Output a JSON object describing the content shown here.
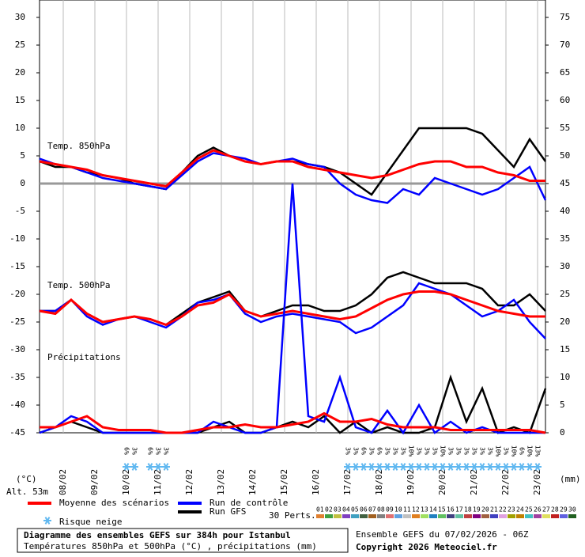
{
  "chart_data": {
    "type": "line",
    "title": "Diagramme des ensembles GEFS sur 384h pour Istanbul",
    "subtitle": "Températures 850hPa et 500hPa (°C) , précipitations (mm)",
    "run_info": "Ensemble GEFS du 07/02/2026 - 06Z",
    "copyright": "Copyright 2026 Meteociel.fr",
    "altitude": "Alt. 53m",
    "y_label": "(°C)",
    "y2_label": "(mm)",
    "annotations": [
      "Temp. 850hPa",
      "Temp. 500hPa",
      "Précipitations"
    ],
    "x": [
      0,
      12,
      24,
      36,
      48,
      60,
      72,
      84,
      96,
      108,
      120,
      132,
      144,
      156,
      168,
      180,
      192,
      204,
      216,
      228,
      240,
      252,
      264,
      276,
      288,
      300,
      312,
      324,
      336,
      348,
      360,
      372,
      384
    ],
    "xlim": [
      0,
      384
    ],
    "xticks": [
      {
        "value": 18,
        "label": "08/02"
      },
      {
        "value": 42,
        "label": "09/02"
      },
      {
        "value": 66,
        "label": "10/02"
      },
      {
        "value": 90,
        "label": "11/02"
      },
      {
        "value": 114,
        "label": "12/02"
      },
      {
        "value": 138,
        "label": "13/02"
      },
      {
        "value": 162,
        "label": "14/02"
      },
      {
        "value": 186,
        "label": "15/02"
      },
      {
        "value": 210,
        "label": "16/02"
      },
      {
        "value": 234,
        "label": "17/02"
      },
      {
        "value": 258,
        "label": "18/02"
      },
      {
        "value": 282,
        "label": "19/02"
      },
      {
        "value": 306,
        "label": "20/02"
      },
      {
        "value": 330,
        "label": "21/02"
      },
      {
        "value": 354,
        "label": "22/02"
      },
      {
        "value": 378,
        "label": "23/02"
      }
    ],
    "ylim": [
      -45,
      30
    ],
    "yticks": [
      -45,
      -40,
      -35,
      -30,
      -25,
      -20,
      -15,
      -10,
      -5,
      0,
      5,
      10,
      15,
      20,
      25,
      30
    ],
    "y2lim": [
      0,
      75
    ],
    "y2ticks": [
      0,
      5,
      10,
      15,
      20,
      25,
      30,
      35,
      40,
      45,
      50,
      55,
      60,
      65,
      70,
      75
    ],
    "zero_line": true,
    "grid": true,
    "series": [
      {
        "name": "Run GFS",
        "color": "#000000",
        "values": [
          4,
          3,
          3,
          2,
          1.5,
          1,
          0,
          -0.5,
          -1,
          2,
          5,
          6.5,
          5,
          4,
          3.5,
          4,
          4,
          3.5,
          3,
          2,
          0,
          -2,
          2,
          6,
          10,
          10,
          10,
          10,
          9,
          6,
          3,
          8,
          4
        ]
      },
      {
        "name": "Run de contrôle",
        "color": "#0000ff",
        "values": [
          4.5,
          3.5,
          3,
          2,
          1,
          0.5,
          0,
          -0.5,
          -1,
          1.5,
          4,
          5.5,
          5,
          4.5,
          3.5,
          4,
          4.5,
          3.5,
          3,
          0,
          -2,
          -3,
          -3.5,
          -1,
          -2,
          1,
          0,
          -1,
          -2,
          -1,
          1,
          3,
          -3
        ]
      },
      {
        "name": "Moyenne des scénarios",
        "color": "#ff0000",
        "values": [
          4,
          3.5,
          3,
          2.5,
          1.5,
          1,
          0.5,
          0,
          -0.5,
          2,
          4.5,
          6,
          5,
          4,
          3.5,
          4,
          4,
          3,
          2.5,
          2,
          1.5,
          1,
          1.5,
          2.5,
          3.5,
          4,
          4,
          3,
          3,
          2,
          1.5,
          0.5,
          0.5
        ]
      },
      {
        "color": "#000000",
        "values": [
          -23,
          -23,
          -21,
          -23.5,
          -25,
          -24.5,
          -24,
          -24.5,
          -25.5,
          -23.5,
          -21.5,
          -20.5,
          -19.5,
          -23,
          -24,
          -23,
          -22,
          -22,
          -23,
          -23,
          -22,
          -20,
          -17,
          -16,
          -17,
          -18,
          -18,
          -18,
          -19,
          -22,
          -22,
          -20,
          -23
        ]
      },
      {
        "color": "#0000ff",
        "values": [
          -23,
          -23,
          -21,
          -24,
          -25.5,
          -24.5,
          -24,
          -25,
          -26,
          -24,
          -21.5,
          -21,
          -20,
          -23.5,
          -25,
          -24,
          -23.5,
          -24,
          -24.5,
          -25,
          -27,
          -26,
          -24,
          -22,
          -18,
          -19,
          -20,
          -22,
          -24,
          -23,
          -21,
          -25,
          -28
        ]
      },
      {
        "color": "#ff0000",
        "values": [
          -23,
          -23.5,
          -21,
          -23.5,
          -25,
          -24.5,
          -24,
          -24.5,
          -25.5,
          -24,
          -22,
          -21.5,
          -20,
          -23,
          -24,
          -23.5,
          -23,
          -23.5,
          -24,
          -24.5,
          -24,
          -22.5,
          -21,
          -20,
          -19.5,
          -19.5,
          -20,
          -21,
          -22,
          -23,
          -23.5,
          -24,
          -24
        ]
      },
      {
        "color": "#000000",
        "axis": "y2",
        "values": [
          0,
          1,
          2,
          1,
          0,
          0,
          0,
          0,
          0,
          0,
          0,
          1,
          2,
          0,
          0,
          1,
          2,
          1,
          3,
          0,
          2,
          0,
          1,
          0,
          0,
          1,
          10,
          2,
          8,
          0,
          1,
          0,
          8
        ]
      },
      {
        "color": "#0000ff",
        "axis": "y2",
        "values": [
          0,
          1,
          3,
          2,
          0,
          0,
          0,
          0,
          0,
          0,
          0,
          2,
          1,
          0,
          0,
          1,
          45,
          3,
          2,
          10,
          1,
          0,
          4,
          0,
          5,
          0,
          2,
          0,
          1,
          0,
          0,
          0,
          0
        ]
      },
      {
        "color": "#ff0000",
        "axis": "y2",
        "values": [
          1,
          1,
          2,
          3,
          1,
          0.5,
          0.5,
          0.5,
          0,
          0,
          0.5,
          1,
          1,
          1.5,
          1,
          1,
          1.5,
          2,
          3.5,
          2,
          2,
          2.5,
          1.5,
          1,
          1,
          1,
          0.5,
          0.5,
          0.5,
          0.5,
          0.5,
          0.5,
          0
        ]
      }
    ],
    "snow_label": "Risque neige",
    "snow_color": "#60b8f0",
    "snow_risk": {
      "x": [
        66,
        72,
        84,
        90,
        96,
        234,
        240,
        246,
        252,
        258,
        264,
        270,
        276,
        282,
        288,
        294,
        300,
        306,
        312,
        318,
        324,
        330,
        336,
        342,
        348,
        354,
        360,
        366,
        372,
        378
      ],
      "values": [
        6,
        3,
        6,
        3,
        3,
        3,
        3,
        6,
        3,
        6,
        3,
        3,
        3,
        10,
        3,
        3,
        3,
        10,
        3,
        3,
        3,
        3,
        3,
        3,
        10,
        3,
        10,
        6,
        10,
        13
      ],
      "value_labels": [
        "6%",
        "3%",
        "6%",
        "3%",
        "3%",
        "3%",
        "3%",
        "6%",
        "3%",
        "6%",
        "3%",
        "3%",
        "3%",
        "10%",
        "3%",
        "3%",
        "3%",
        "10%",
        "3%",
        "3%",
        "3%",
        "3%",
        "3%",
        "3%",
        "10%",
        "3%",
        "10%",
        "6%",
        "10%",
        "13%"
      ]
    },
    "perturbations": {
      "label": "30 Perts.",
      "names": [
        "01",
        "02",
        "03",
        "04",
        "05",
        "06",
        "07",
        "08",
        "09",
        "10",
        "11",
        "12",
        "13",
        "14",
        "15",
        "16",
        "17",
        "18",
        "19",
        "20",
        "21",
        "22",
        "23",
        "24",
        "25",
        "26",
        "27",
        "28",
        "29",
        "30"
      ],
      "colors": [
        "#e08030",
        "#40a040",
        "#c0c040",
        "#8040c0",
        "#40a0c0",
        "#406040",
        "#a06020",
        "#808080",
        "#e07070",
        "#60a0e0",
        "#c0c0c0",
        "#e08020",
        "#a0e060",
        "#2080c0",
        "#60c060",
        "#404080",
        "#60c0a0",
        "#c04040",
        "#800080",
        "#a06040",
        "#4040c0",
        "#e0a0e0",
        "#a0a000",
        "#c08000",
        "#40c0c0",
        "#a040a0",
        "#e0e060",
        "#c02020",
        "#6060e0",
        "#206020"
      ]
    }
  }
}
